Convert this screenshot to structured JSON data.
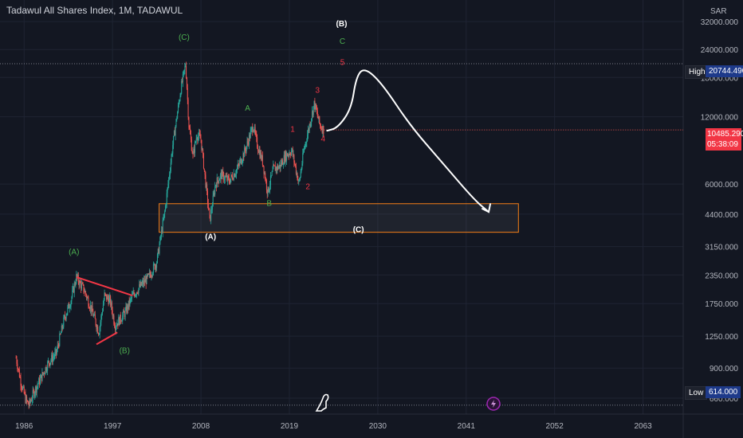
{
  "title": "Tadawul All Shares Index, 1M, TADAWUL",
  "currency": "SAR",
  "colors": {
    "background": "#131722",
    "grid": "#1f2433",
    "text": "#b2b5be",
    "up": "#26a69a",
    "down": "#ef5350",
    "wave_green": "#4caf50",
    "wave_red": "#f23645",
    "wave_white": "#ffffff",
    "zone_border": "#f57f17",
    "price_tag": "#f23645",
    "high_low_tag": "#1e3a8a"
  },
  "markers": {
    "high_label": "High",
    "high_value": "20744.490",
    "low_label": "Low",
    "low_value": "614.000",
    "last_price": "10485.290",
    "countdown": "05:38:09"
  },
  "chart_data": {
    "type": "candlestick",
    "title": "Tadawul All Shares Index, 1M, TADAWUL",
    "y_scale": "log",
    "y_unit": "SAR",
    "y_ticks": [
      32000,
      24000,
      18000,
      12000,
      6000,
      4400,
      3150,
      2350,
      1750,
      1250,
      900,
      660
    ],
    "y_tick_labels": [
      "32000.000",
      "24000.000",
      "18000.000",
      "12000.000",
      "6000.000",
      "4400.000",
      "3150.000",
      "2350.000",
      "1750.000",
      "1250.000",
      "900.000",
      "660.000"
    ],
    "x_ticks": [
      1986,
      1997,
      2008,
      2019,
      2030,
      2041,
      2052,
      2063
    ],
    "ylim": [
      560,
      40000
    ],
    "xlim": [
      1983,
      2068
    ],
    "price_path": [
      [
        1985,
        1000
      ],
      [
        1985.6,
        780
      ],
      [
        1986.2,
        650
      ],
      [
        1986.6,
        614
      ],
      [
        1987.2,
        700
      ],
      [
        1988,
        800
      ],
      [
        1989,
        950
      ],
      [
        1990,
        1050
      ],
      [
        1991,
        1500
      ],
      [
        1991.8,
        1800
      ],
      [
        1992.5,
        2300
      ],
      [
        1993.5,
        2000
      ],
      [
        1994.5,
        1600
      ],
      [
        1995.3,
        1300
      ],
      [
        1996,
        1900
      ],
      [
        1996.7,
        1800
      ],
      [
        1997.3,
        1400
      ],
      [
        1998,
        1500
      ],
      [
        1998.6,
        1600
      ],
      [
        1999.5,
        1900
      ],
      [
        2000.5,
        2100
      ],
      [
        2001.5,
        2300
      ],
      [
        2002.5,
        2700
      ],
      [
        2003.5,
        4500
      ],
      [
        2004.5,
        9000
      ],
      [
        2005.5,
        16000
      ],
      [
        2006.1,
        20744
      ],
      [
        2006.5,
        11000
      ],
      [
        2007,
        8000
      ],
      [
        2007.5,
        10000
      ],
      [
        2008,
        9500
      ],
      [
        2008.6,
        6000
      ],
      [
        2009.1,
        4130
      ],
      [
        2009.8,
        6000
      ],
      [
        2010.5,
        6600
      ],
      [
        2011.5,
        6200
      ],
      [
        2012.5,
        7000
      ],
      [
        2013.5,
        8500
      ],
      [
        2014.5,
        11000
      ],
      [
        2015,
        9000
      ],
      [
        2015.7,
        7500
      ],
      [
        2016.3,
        5500
      ],
      [
        2017,
        7000
      ],
      [
        2017.8,
        7200
      ],
      [
        2018.5,
        8000
      ],
      [
        2019.3,
        8500
      ],
      [
        2020.2,
        6000
      ],
      [
        2020.8,
        8500
      ],
      [
        2021.5,
        11000
      ],
      [
        2022.1,
        13800
      ],
      [
        2022.8,
        11000
      ],
      [
        2023.3,
        10500
      ]
    ],
    "wave_labels": [
      {
        "text": "(C)",
        "x": 2005.9,
        "y": 26500,
        "color": "green"
      },
      {
        "text": "(A)",
        "x": 1992.2,
        "y": 2900,
        "color": "green"
      },
      {
        "text": "(B)",
        "x": 1998.5,
        "y": 1050,
        "color": "green"
      },
      {
        "text": "A",
        "x": 2013.8,
        "y": 12800,
        "color": "green"
      },
      {
        "text": "B",
        "x": 2016.5,
        "y": 4800,
        "color": "green"
      },
      {
        "text": "C",
        "x": 2025.6,
        "y": 25500,
        "color": "green"
      },
      {
        "text": "(B)",
        "x": 2025.5,
        "y": 30500,
        "color": "white"
      },
      {
        "text": "(A)",
        "x": 2009.2,
        "y": 3400,
        "color": "white"
      },
      {
        "text": "(C)",
        "x": 2027.6,
        "y": 3650,
        "color": "white"
      },
      {
        "text": "1",
        "x": 2019.4,
        "y": 10300,
        "color": "red"
      },
      {
        "text": "2",
        "x": 2021.3,
        "y": 5700,
        "color": "red"
      },
      {
        "text": "3",
        "x": 2022.5,
        "y": 15400,
        "color": "red"
      },
      {
        "text": "4",
        "x": 2023.2,
        "y": 9300,
        "color": "red"
      },
      {
        "text": "5",
        "x": 2025.6,
        "y": 20500,
        "color": "red"
      }
    ],
    "zone": {
      "x_from": 2002.8,
      "x_to": 2047.5,
      "y_from": 3650,
      "y_to": 4900
    },
    "triangle_lines": [
      [
        [
          1992.5,
          2300
        ],
        [
          1999.5,
          1900
        ]
      ],
      [
        [
          1995,
          1150
        ],
        [
          1997.6,
          1300
        ]
      ]
    ],
    "projection": [
      [
        2023.7,
        10400
      ],
      [
        2025,
        10700
      ],
      [
        2026.7,
        13000
      ],
      [
        2027.3,
        18000
      ],
      [
        2028.3,
        20000
      ],
      [
        2030.5,
        17000
      ],
      [
        2034,
        11000
      ],
      [
        2038,
        7500
      ],
      [
        2042,
        5100
      ],
      [
        2043.8,
        4500
      ]
    ],
    "projection_arrow_tip": [
      2043.8,
      4500
    ]
  }
}
